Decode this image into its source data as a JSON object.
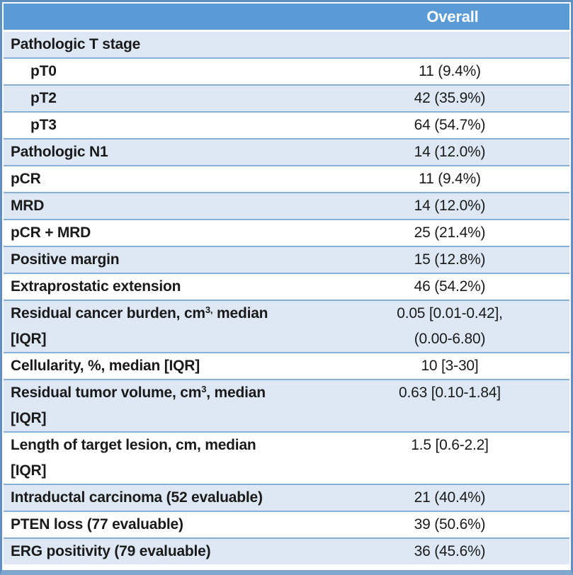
{
  "table": {
    "header": {
      "overall_label": "Overall"
    },
    "rows": [
      {
        "label": "Pathologic T stage",
        "value": "",
        "indent": false
      },
      {
        "label": "pT0",
        "value": "11 (9.4%)",
        "indent": true
      },
      {
        "label": "pT2",
        "value": "42 (35.9%)",
        "indent": true
      },
      {
        "label": "pT3",
        "value": "64 (54.7%)",
        "indent": true
      },
      {
        "label": "Pathologic N1",
        "value": "14 (12.0%)",
        "indent": false
      },
      {
        "label": "pCR",
        "value": "11 (9.4%)",
        "indent": false
      },
      {
        "label": "MRD",
        "value": "14 (12.0%)",
        "indent": false
      },
      {
        "label": "pCR + MRD",
        "value": "25 (21.4%)",
        "indent": false
      },
      {
        "label": "Positive margin",
        "value": "15 (12.8%)",
        "indent": false
      },
      {
        "label": "Extraprostatic extension",
        "value": "46 (54.2%)",
        "indent": false
      },
      {
        "label": "Residual cancer burden, cm^{3,} median\n[IQR]",
        "value": "0.05 [0.01-0.42],\n(0.00-6.80)",
        "indent": false
      },
      {
        "label": "Cellularity, %, median [IQR]",
        "value": "10 [3-30]",
        "indent": false
      },
      {
        "label": "Residual tumor volume, cm^{3}, median\n[IQR]",
        "value": "0.63 [0.10-1.84]",
        "indent": false
      },
      {
        "label": "Length of target lesion, cm, median\n[IQR]",
        "value": "1.5 [0.6-2.2]",
        "indent": false
      },
      {
        "label": "Intraductal carcinoma (52 evaluable)",
        "value": "21 (40.4%)",
        "indent": false
      },
      {
        "label": "PTEN loss (77 evaluable)",
        "value": "39 (50.6%)",
        "indent": false
      },
      {
        "label": "ERG positivity (79 evaluable)",
        "value": "36 (45.6%)",
        "indent": false
      }
    ]
  },
  "colors": {
    "header_bg": "#5B9BD5",
    "header_text": "#FFFFFF",
    "band_bg": "#DEE8F4",
    "row_bg": "#FFFFFF",
    "separator": "#8AAFD6",
    "outer_border": "#6090C2",
    "bottom_border": "#7FA6CC",
    "text": "#1A1A1A"
  }
}
